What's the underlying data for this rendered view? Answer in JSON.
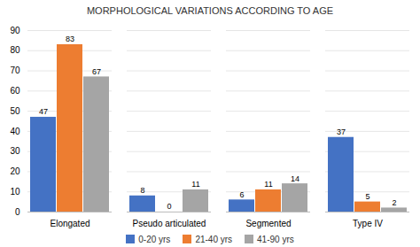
{
  "chart_data": {
    "type": "bar",
    "title": "MORPHOLOGICAL VARIATIONS ACCORDING TO AGE",
    "categories": [
      "Elongated",
      "Pseudo articulated",
      "Segmented",
      "Type IV"
    ],
    "series": [
      {
        "name": "0-20 yrs",
        "color": "#4472C4",
        "values": [
          47,
          8,
          6,
          37
        ]
      },
      {
        "name": "21-40 yrs",
        "color": "#ED7D31",
        "values": [
          83,
          0,
          11,
          5
        ]
      },
      {
        "name": "41-90 yrs",
        "color": "#A5A5A5",
        "values": [
          67,
          11,
          14,
          2
        ]
      }
    ],
    "ylim": [
      0,
      90
    ],
    "yticks": [
      0,
      10,
      20,
      30,
      40,
      50,
      60,
      70,
      80,
      90
    ],
    "grid": true,
    "legend": "bottom",
    "data_labels": true
  }
}
